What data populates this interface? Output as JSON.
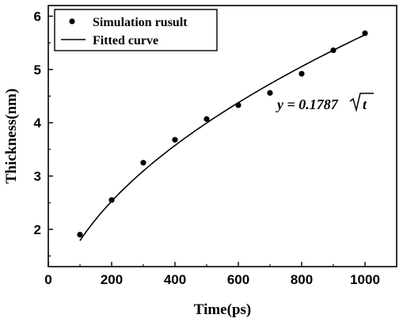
{
  "chart_data": {
    "type": "scatter",
    "xlabel": "Time(ps)",
    "ylabel": "Thickness(nm)",
    "xlim": [
      0,
      1100
    ],
    "ylim": [
      1.3,
      6.2
    ],
    "xticks": [
      0,
      200,
      400,
      600,
      800,
      1000
    ],
    "yticks": [
      2,
      3,
      4,
      5,
      6
    ],
    "grid": false,
    "legend_position": "top-left",
    "series": [
      {
        "name": "Simulation rusult",
        "kind": "scatter",
        "x": [
          100,
          200,
          300,
          400,
          500,
          600,
          700,
          800,
          900,
          1000
        ],
        "y": [
          1.9,
          2.55,
          3.25,
          3.68,
          4.07,
          4.33,
          4.56,
          4.92,
          5.36,
          5.68
        ]
      },
      {
        "name": "Fitted curve",
        "kind": "line",
        "formula": "y = 0.1787 * sqrt(t)",
        "x_range": [
          100,
          1000
        ]
      }
    ],
    "annotation": {
      "prefix": "y = 0.1787",
      "sqrt_arg": "t"
    }
  }
}
